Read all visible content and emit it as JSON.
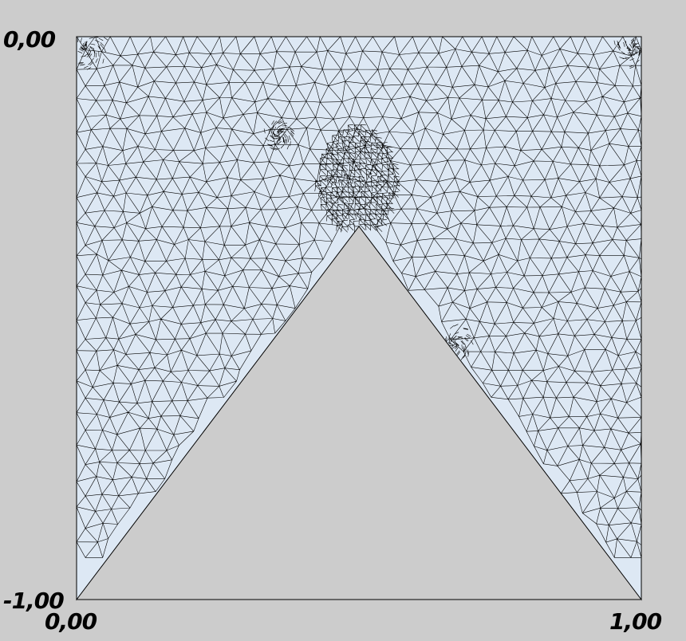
{
  "axes": {
    "y_max_label": "0,00",
    "y_min_label": "-1,00",
    "x_min_label": "0,00",
    "x_max_label": "1,00"
  },
  "colors": {
    "background": "#cccccc",
    "mesh_fill": "#dde8f4",
    "mesh_lines": "#000000"
  }
}
